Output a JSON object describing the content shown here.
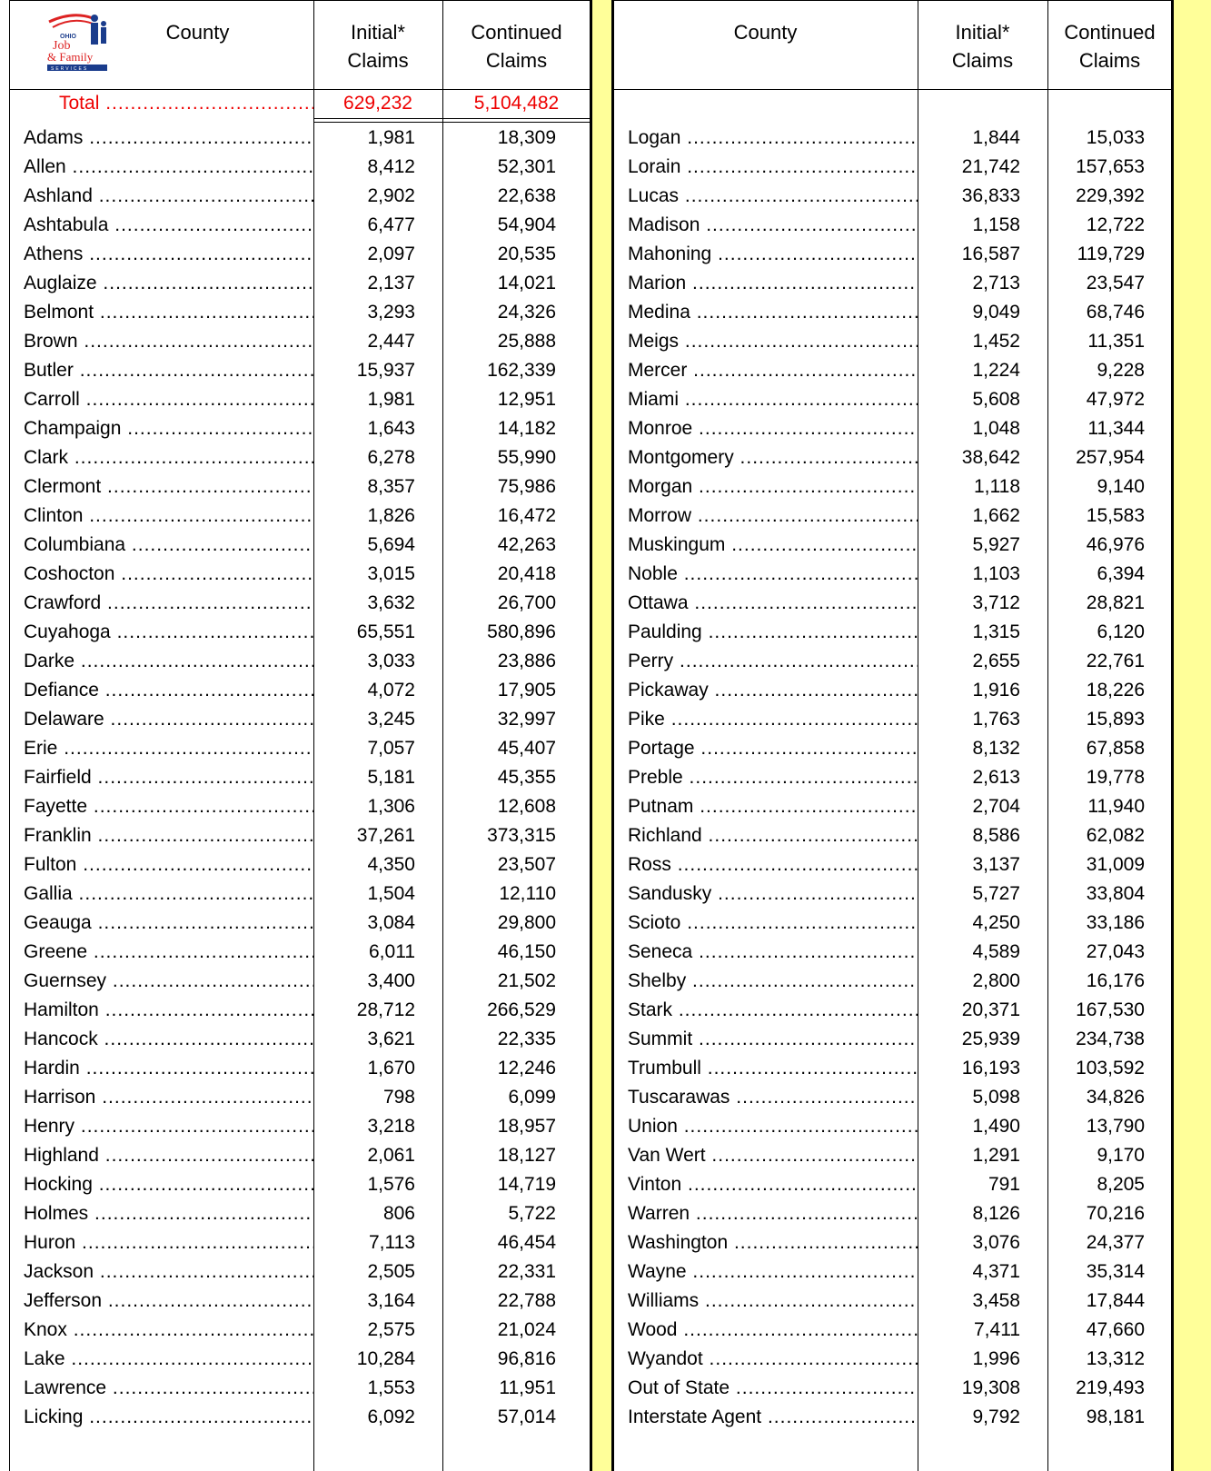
{
  "logo": {
    "top": "OHIO",
    "line1": "Job",
    "line2": "& Family",
    "bottom": "SERVICES"
  },
  "headers": [
    "County",
    "Initial*\nClaims",
    "Continued\nClaims"
  ],
  "total": {
    "label": "Total",
    "initial": "629,232",
    "continued": "5,104,482"
  },
  "left": [
    [
      "Adams",
      "1,981",
      "18,309"
    ],
    [
      "Allen",
      "8,412",
      "52,301"
    ],
    [
      "Ashland",
      "2,902",
      "22,638"
    ],
    [
      "Ashtabula",
      "6,477",
      "54,904"
    ],
    [
      "Athens",
      "2,097",
      "20,535"
    ],
    [
      "Auglaize",
      "2,137",
      "14,021"
    ],
    [
      "Belmont",
      "3,293",
      "24,326"
    ],
    [
      "Brown",
      "2,447",
      "25,888"
    ],
    [
      "Butler",
      "15,937",
      "162,339"
    ],
    [
      "Carroll",
      "1,981",
      "12,951"
    ],
    [
      "Champaign",
      "1,643",
      "14,182"
    ],
    [
      "Clark",
      "6,278",
      "55,990"
    ],
    [
      "Clermont",
      "8,357",
      "75,986"
    ],
    [
      "Clinton",
      "1,826",
      "16,472"
    ],
    [
      "Columbiana",
      "5,694",
      "42,263"
    ],
    [
      "Coshocton",
      "3,015",
      "20,418"
    ],
    [
      "Crawford",
      "3,632",
      "26,700"
    ],
    [
      "Cuyahoga",
      "65,551",
      "580,896"
    ],
    [
      "Darke",
      "3,033",
      "23,886"
    ],
    [
      "Defiance",
      "4,072",
      "17,905"
    ],
    [
      "Delaware",
      "3,245",
      "32,997"
    ],
    [
      "Erie",
      "7,057",
      "45,407"
    ],
    [
      "Fairfield",
      "5,181",
      "45,355"
    ],
    [
      "Fayette",
      "1,306",
      "12,608"
    ],
    [
      "Franklin",
      "37,261",
      "373,315"
    ],
    [
      "Fulton",
      "4,350",
      "23,507"
    ],
    [
      "Gallia",
      "1,504",
      "12,110"
    ],
    [
      "Geauga",
      "3,084",
      "29,800"
    ],
    [
      "Greene",
      "6,011",
      "46,150"
    ],
    [
      "Guernsey",
      "3,400",
      "21,502"
    ],
    [
      "Hamilton",
      "28,712",
      "266,529"
    ],
    [
      "Hancock",
      "3,621",
      "22,335"
    ],
    [
      "Hardin",
      "1,670",
      "12,246"
    ],
    [
      "Harrison",
      "798",
      "6,099"
    ],
    [
      "Henry",
      "3,218",
      "18,957"
    ],
    [
      "Highland",
      "2,061",
      "18,127"
    ],
    [
      "Hocking",
      "1,576",
      "14,719"
    ],
    [
      "Holmes",
      "806",
      "5,722"
    ],
    [
      "Huron",
      "7,113",
      "46,454"
    ],
    [
      "Jackson",
      "2,505",
      "22,331"
    ],
    [
      "Jefferson",
      "3,164",
      "22,788"
    ],
    [
      "Knox",
      "2,575",
      "21,024"
    ],
    [
      "Lake",
      "10,284",
      "96,816"
    ],
    [
      "Lawrence",
      "1,553",
      "11,951"
    ],
    [
      "Licking",
      "6,092",
      "57,014"
    ]
  ],
  "right": [
    [
      "Logan",
      "1,844",
      "15,033"
    ],
    [
      "Lorain",
      "21,742",
      "157,653"
    ],
    [
      "Lucas",
      "36,833",
      "229,392"
    ],
    [
      "Madison",
      "1,158",
      "12,722"
    ],
    [
      "Mahoning",
      "16,587",
      "119,729"
    ],
    [
      "Marion",
      "2,713",
      "23,547"
    ],
    [
      "Medina",
      "9,049",
      "68,746"
    ],
    [
      "Meigs",
      "1,452",
      "11,351"
    ],
    [
      "Mercer",
      "1,224",
      "9,228"
    ],
    [
      "Miami",
      "5,608",
      "47,972"
    ],
    [
      "Monroe",
      "1,048",
      "11,344"
    ],
    [
      "Montgomery",
      "38,642",
      "257,954"
    ],
    [
      "Morgan",
      "1,118",
      "9,140"
    ],
    [
      "Morrow",
      "1,662",
      "15,583"
    ],
    [
      "Muskingum",
      "5,927",
      "46,976"
    ],
    [
      "Noble",
      "1,103",
      "6,394"
    ],
    [
      "Ottawa",
      "3,712",
      "28,821"
    ],
    [
      "Paulding",
      "1,315",
      "6,120"
    ],
    [
      "Perry",
      "2,655",
      "22,761"
    ],
    [
      "Pickaway",
      "1,916",
      "18,226"
    ],
    [
      "Pike",
      "1,763",
      "15,893"
    ],
    [
      "Portage",
      "8,132",
      "67,858"
    ],
    [
      "Preble",
      "2,613",
      "19,778"
    ],
    [
      "Putnam",
      "2,704",
      "11,940"
    ],
    [
      "Richland",
      "8,586",
      "62,082"
    ],
    [
      "Ross",
      "3,137",
      "31,009"
    ],
    [
      "Sandusky",
      "5,727",
      "33,804"
    ],
    [
      "Scioto",
      "4,250",
      "33,186"
    ],
    [
      "Seneca",
      "4,589",
      "27,043"
    ],
    [
      "Shelby",
      "2,800",
      "16,176"
    ],
    [
      "Stark",
      "20,371",
      "167,530"
    ],
    [
      "Summit",
      "25,939",
      "234,738"
    ],
    [
      "Trumbull",
      "16,193",
      "103,592"
    ],
    [
      "Tuscarawas",
      "5,098",
      "34,826"
    ],
    [
      "Union",
      "1,490",
      "13,790"
    ],
    [
      "Van Wert",
      "1,291",
      "9,170"
    ],
    [
      "Vinton",
      "791",
      "8,205"
    ],
    [
      "Warren",
      "8,126",
      "70,216"
    ],
    [
      "Washington",
      "3,076",
      "24,377"
    ],
    [
      "Wayne",
      "4,371",
      "35,314"
    ],
    [
      "Williams",
      "3,458",
      "17,844"
    ],
    [
      "Wood",
      "7,411",
      "47,660"
    ],
    [
      "Wyandot",
      "1,996",
      "13,312"
    ],
    [
      "Out of State",
      "19,308",
      "219,493"
    ],
    [
      "Interstate Agent",
      "9,792",
      "98,181"
    ]
  ]
}
